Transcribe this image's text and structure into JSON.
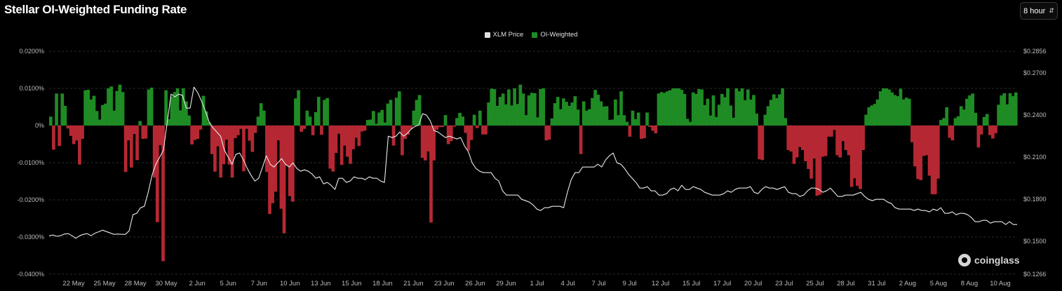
{
  "header": {
    "title": "Stellar OI-Weighted Funding Rate",
    "interval_label": "8 hour",
    "interval_icon": "chevron-updown-icon"
  },
  "watermark": {
    "text": "coinglass"
  },
  "colors": {
    "positive": "#1f8b24",
    "negative": "#b52833",
    "price_line": "#e8e8e8",
    "grid": "#2a2a2a",
    "axis_text": "#bdbdbd"
  },
  "chart_data": {
    "type": "bar",
    "legend": [
      {
        "name": "XLM Price",
        "color": "#e0e0e0"
      },
      {
        "name": "OI-Weighted",
        "color": "#1f8b24"
      }
    ],
    "legend_placement": "top-center",
    "grid": true,
    "x_tick_labels": [
      "22 May",
      "25 May",
      "28 May",
      "30 May",
      "2 Jun",
      "5 Jun",
      "7 Jun",
      "10 Jun",
      "13 Jun",
      "15 Jun",
      "18 Jun",
      "21 Jun",
      "23 Jun",
      "26 Jun",
      "29 Jun",
      "1 Jul",
      "4 Jul",
      "7 Jul",
      "9 Jul",
      "12 Jul",
      "15 Jul",
      "17 Jul",
      "20 Jul",
      "23 Jul",
      "25 Jul",
      "28 Jul",
      "31 Jul",
      "2 Aug",
      "5 Aug",
      "8 Aug",
      "10 Aug"
    ],
    "y_left": {
      "ticks": [
        0.02,
        0.01,
        0,
        -0.01,
        -0.02,
        -0.03,
        -0.04
      ],
      "tick_labels": [
        "0.0200%",
        "0.0100%",
        "0%",
        "-0.0100%",
        "-0.0200%",
        "-0.0300%",
        "-0.0400%"
      ],
      "range": [
        -0.04,
        0.02
      ]
    },
    "y_right": {
      "ticks": [
        0.2856,
        0.27,
        0.24,
        0.21,
        0.18,
        0.15,
        0.1266
      ],
      "tick_labels": [
        "$0.2856",
        "$0.2700",
        "$0.2400",
        "$0.2100",
        "$0.1800",
        "$0.1500",
        "$0.1266"
      ],
      "range": [
        0.1266,
        0.2856
      ]
    },
    "series": [
      {
        "name": "OI-Weighted",
        "unit": "%",
        "values": [
          0.0024,
          -0.0065,
          0.0086,
          -0.0055,
          0.0086,
          0.0053,
          -0.0008,
          -0.0028,
          -0.005,
          -0.004,
          -0.0105,
          -0.0036,
          0.0095,
          0.0096,
          0.007,
          0.008,
          0.0039,
          0.0016,
          0.0055,
          0.0059,
          0.01,
          0.0105,
          0.004,
          0.0093,
          0.011,
          0.009,
          -0.0125,
          -0.004,
          -0.0113,
          -0.0023,
          -0.0093,
          0.0012,
          -0.0036,
          -0.0035,
          0.0097,
          0.0102,
          -0.014,
          -0.026,
          -0.0053,
          -0.0365,
          0.0095,
          0.0017,
          0.0078,
          0.009,
          0.01,
          0.0041,
          0.01,
          0.0065,
          0.0027,
          -0.0051,
          -0.0039,
          -0.0036,
          -0.0011,
          0.008,
          0.0038,
          0.0009,
          -0.0077,
          -0.0124,
          -0.0056,
          -0.014,
          -0.0104,
          -0.0038,
          -0.0105,
          -0.014,
          -0.0034,
          -0.0026,
          -0.0009,
          -0.0123,
          -0.0009,
          -0.0041,
          -0.0071,
          -0.002,
          0.0024,
          0.006,
          0.004,
          -0.0125,
          -0.0238,
          -0.0209,
          -0.0178,
          -0.004,
          -0.0224,
          -0.029,
          -0.0108,
          -0.019,
          -0.0205,
          0.0073,
          0.0095,
          -0.0017,
          -0.0009,
          0.004,
          0.0024,
          -0.0026,
          0.0036,
          0.0077,
          -0.0025,
          0.0069,
          0.0074,
          -0.0116,
          -0.0124,
          -0.0074,
          -0.0022,
          -0.0106,
          -0.0054,
          -0.0084,
          -0.0103,
          -0.0064,
          -0.0033,
          -0.0055,
          -0.0016,
          -0.0014,
          0.0015,
          0.0016,
          0.0039,
          0.0005,
          0.0035,
          0.0042,
          0.0008,
          0.0059,
          0.0069,
          -0.0054,
          0.0075,
          0.0092,
          -0.008,
          -0.0036,
          -0.0025,
          -0.001,
          0.004,
          0.0069,
          0.0082,
          -0.0087,
          -0.0094,
          -0.007,
          -0.0261,
          -0.0094,
          -0.0011,
          -0.0004,
          -0.0004,
          0.0028,
          -0.005,
          -0.0042,
          -0.0003,
          0.002,
          0.0034,
          0.0024,
          -0.002,
          -0.0067,
          -0.0039,
          0.0029,
          -0.0007,
          0.004,
          -0.0024,
          -0.0024,
          0.0062,
          0.0099,
          0.0098,
          0.0053,
          0.0077,
          0.0086,
          0.0057,
          0.0097,
          0.0054,
          0.01,
          0.0058,
          0.011,
          0.0086,
          0.0028,
          0.0081,
          0.0088,
          0.0087,
          0.0022,
          0.0098,
          0.01,
          -0.004,
          -0.0038,
          0.0019,
          0.006,
          0.0077,
          0.0044,
          0.0073,
          0.0064,
          0.0053,
          0.0062,
          0.0079,
          0.0043,
          -0.0077,
          0.0065,
          0.004,
          0.0044,
          0.0074,
          0.0096,
          0.0083,
          0.0065,
          0.0051,
          0.0052,
          0.0015,
          0.0016,
          0.007,
          0.0028,
          0.0092,
          0.0028,
          0.001,
          -0.003,
          0.004,
          0.0017,
          0.0035,
          -0.0036,
          -0.0034,
          0.0035,
          -0.0004,
          -0.0014,
          -0.0021,
          0.0086,
          0.009,
          0.0088,
          0.0092,
          0.0095,
          0.01,
          0.01,
          0.01,
          0.0096,
          0.0085,
          0.0018,
          0.001,
          0.0089,
          0.0085,
          0.0098,
          0.0097,
          0.0055,
          0.0072,
          0.0027,
          0.0081,
          0.0023,
          0.0056,
          0.0085,
          0.0076,
          0.01,
          0.0054,
          0.0021,
          0.01,
          0.0092,
          0.01,
          0.0068,
          0.0097,
          0.007,
          0.0082,
          0.0032,
          -0.0091,
          -0.0093,
          0.0029,
          0.0052,
          0.0069,
          0.0084,
          0.0074,
          0.0084,
          0.01,
          0.002,
          -0.0066,
          -0.007,
          -0.0103,
          -0.0086,
          -0.0058,
          -0.0066,
          -0.0096,
          -0.0117,
          -0.0143,
          -0.0089,
          -0.0189,
          -0.0186,
          -0.0084,
          -0.0082,
          -0.003,
          -0.003,
          -0.0012,
          -0.008,
          -0.0086,
          -0.0042,
          -0.0066,
          -0.008,
          -0.0165,
          -0.0142,
          -0.0162,
          -0.0171,
          -0.0066,
          0.0029,
          0.0049,
          0.0054,
          0.0058,
          0.007,
          0.0092,
          0.01,
          0.01,
          0.0097,
          0.0089,
          0.0082,
          0.0079,
          0.0099,
          0.007,
          0.0075,
          0.0072,
          -0.0045,
          -0.011,
          -0.0144,
          -0.0147,
          -0.0082,
          -0.008,
          -0.0135,
          -0.0185,
          -0.0185,
          -0.0143,
          0.0015,
          0.002,
          0.0049,
          -0.0033,
          -0.004,
          0.002,
          0.0025,
          0.0052,
          0.0043,
          0.0072,
          0.0081,
          0.0086,
          0.0034,
          -0.0059,
          -0.0024,
          0.0023,
          0.0031,
          -0.0026,
          -0.0035,
          -0.0021,
          0.0056,
          0.0081,
          0.0087,
          0.0057,
          0.0087,
          0.0079,
          0.0089
        ]
      },
      {
        "name": "XLM Price",
        "unit": "$",
        "values": [
          0.154,
          0.1545,
          0.1536,
          0.154,
          0.1552,
          0.1555,
          0.154,
          0.1522,
          0.154,
          0.155,
          0.1555,
          0.154,
          0.1558,
          0.1568,
          0.158,
          0.157,
          0.156,
          0.155,
          0.1552,
          0.155,
          0.155,
          0.1575,
          0.169,
          0.17,
          0.174,
          0.175,
          0.185,
          0.197,
          0.205,
          0.21,
          0.215,
          0.235,
          0.255,
          0.253,
          0.255,
          0.254,
          0.245,
          0.245,
          0.26,
          0.256,
          0.25,
          0.243,
          0.235,
          0.231,
          0.228,
          0.225,
          0.215,
          0.21,
          0.205,
          0.212,
          0.213,
          0.208,
          0.202,
          0.197,
          0.193,
          0.195,
          0.203,
          0.211,
          0.205,
          0.203,
          0.206,
          0.209,
          0.205,
          0.203,
          0.206,
          0.202,
          0.2,
          0.201,
          0.2,
          0.198,
          0.195,
          0.196,
          0.191,
          0.192,
          0.19,
          0.187,
          0.195,
          0.195,
          0.192,
          0.193,
          0.196,
          0.195,
          0.195,
          0.194,
          0.196,
          0.195,
          0.195,
          0.193,
          0.192,
          0.225,
          0.224,
          0.225,
          0.228,
          0.225,
          0.227,
          0.23,
          0.232,
          0.233,
          0.241,
          0.24,
          0.236,
          0.229,
          0.228,
          0.226,
          0.224,
          0.225,
          0.224,
          0.223,
          0.224,
          0.218,
          0.214,
          0.206,
          0.202,
          0.2,
          0.199,
          0.199,
          0.199,
          0.195,
          0.193,
          0.186,
          0.183,
          0.183,
          0.183,
          0.183,
          0.18,
          0.179,
          0.178,
          0.176,
          0.173,
          0.172,
          0.174,
          0.174,
          0.175,
          0.175,
          0.175,
          0.174,
          0.185,
          0.194,
          0.199,
          0.199,
          0.203,
          0.203,
          0.203,
          0.203,
          0.205,
          0.203,
          0.208,
          0.211,
          0.213,
          0.206,
          0.205,
          0.202,
          0.198,
          0.195,
          0.192,
          0.188,
          0.188,
          0.189,
          0.186,
          0.186,
          0.183,
          0.183,
          0.184,
          0.187,
          0.188,
          0.186,
          0.19,
          0.187,
          0.187,
          0.189,
          0.188,
          0.187,
          0.185,
          0.184,
          0.183,
          0.183,
          0.183,
          0.184,
          0.186,
          0.185,
          0.187,
          0.188,
          0.188,
          0.188,
          0.189,
          0.185,
          0.184,
          0.187,
          0.189,
          0.188,
          0.188,
          0.187,
          0.188,
          0.189,
          0.185,
          0.184,
          0.184,
          0.182,
          0.183,
          0.186,
          0.188,
          0.188,
          0.187,
          0.185,
          0.186,
          0.188,
          0.185,
          0.182,
          0.182,
          0.183,
          0.183,
          0.183,
          0.184,
          0.185,
          0.182,
          0.18,
          0.179,
          0.18,
          0.18,
          0.18,
          0.178,
          0.177,
          0.174,
          0.173,
          0.173,
          0.173,
          0.173,
          0.172,
          0.173,
          0.172,
          0.172,
          0.171,
          0.173,
          0.172,
          0.174,
          0.17,
          0.17,
          0.171,
          0.169,
          0.17,
          0.17,
          0.169,
          0.167,
          0.164,
          0.164,
          0.165,
          0.165,
          0.163,
          0.164,
          0.164,
          0.164,
          0.162,
          0.164,
          0.162,
          0.162
        ]
      }
    ]
  }
}
